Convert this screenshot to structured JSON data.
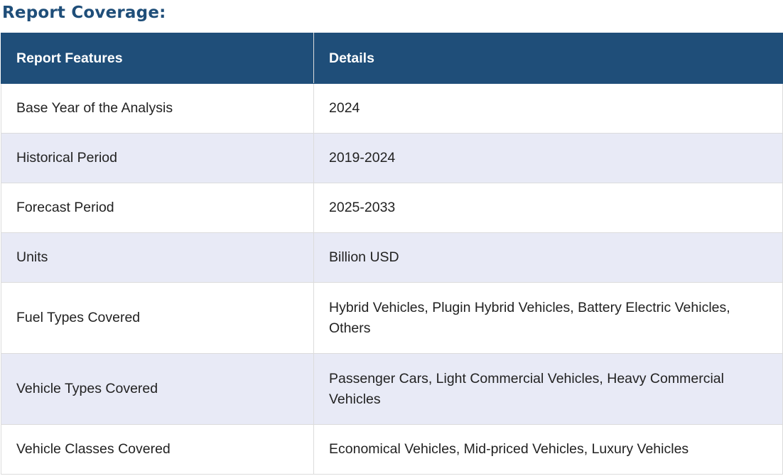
{
  "heading": "Report Coverage:",
  "table": {
    "headers": [
      "Report Features",
      "Details"
    ],
    "rows": [
      {
        "feature": "Base Year of the Analysis",
        "detail": "2024"
      },
      {
        "feature": "Historical Period",
        "detail": "2019-2024"
      },
      {
        "feature": "Forecast Period",
        "detail": "2025-2033"
      },
      {
        "feature": "Units",
        "detail": "Billion USD"
      },
      {
        "feature": "Fuel Types Covered",
        "detail": "Hybrid Vehicles, Plugin Hybrid Vehicles, Battery Electric Vehicles, Others"
      },
      {
        "feature": "Vehicle Types Covered",
        "detail": "Passenger Cars, Light Commercial Vehicles, Heavy Commercial Vehicles"
      },
      {
        "feature": "Vehicle Classes Covered",
        "detail": "Economical Vehicles, Mid-priced Vehicles, Luxury Vehicles"
      }
    ]
  },
  "colors": {
    "heading": "#1f4e79",
    "header_bg": "#1f4e79",
    "row_alt_bg": "#e8eaf6"
  }
}
